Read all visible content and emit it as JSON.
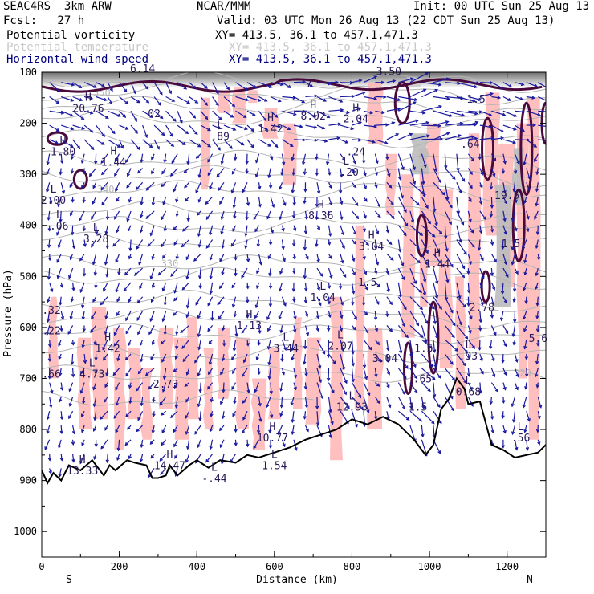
{
  "header": {
    "model": "SEAC4RS  3km ARW",
    "center": "NCAR/MMM",
    "init": "Init: 00 UTC Sun 25 Aug 13",
    "fcst": "Fcst:   27 h",
    "valid": "Valid: 03 UTC Mon 26 Aug 13 (22 CDT Sun 25 Aug 13)",
    "fields": [
      {
        "name": "Potential vorticity",
        "xy": "XY= 413.5, 36.1 to 457.1,471.3",
        "color": "#000000"
      },
      {
        "name": "Potential temperature",
        "xy": "XY= 413.5, 36.1 to 457.1,471.3",
        "color": "#c8c8c8"
      },
      {
        "name": "Horizontal wind speed",
        "xy": "XY= 413.5, 36.1 to 457.1,471.3",
        "color": "#000080"
      }
    ]
  },
  "chart_data": {
    "type": "cross-section",
    "xlabel": "Distance (km)",
    "ylabel": "Pressure (hPa)",
    "xlim": [
      0,
      1300
    ],
    "ylim": [
      1050,
      100
    ],
    "x_ticks": [
      0,
      200,
      400,
      600,
      800,
      1000,
      1200
    ],
    "y_ticks": [
      100,
      200,
      300,
      400,
      500,
      600,
      700,
      800,
      900,
      1000
    ],
    "endpoint_labels": {
      "left": "S",
      "right": "N"
    },
    "colors": {
      "terrain": "#000000",
      "pv_contour": "#4a0a3c",
      "theta_contour": "#b4b4b4",
      "wind_vectors": "#1a1aa0",
      "shading": "#ffb8b8",
      "stratosphere_shading": "#888888",
      "hl_labels": "#2a1a5a"
    },
    "theta_contours": [
      {
        "label": "350",
        "pressure": 140
      },
      {
        "label": "340",
        "pressure": 330
      },
      {
        "label": "330",
        "pressure": 475
      },
      {
        "label": "320",
        "pressure": 690
      }
    ],
    "terrain_profile": {
      "distance": [
        0,
        15,
        30,
        50,
        70,
        100,
        130,
        160,
        175,
        190,
        220,
        240,
        270,
        285,
        300,
        320,
        330,
        350,
        380,
        400,
        430,
        460,
        500,
        530,
        560,
        600,
        640,
        680,
        700,
        720,
        760,
        800,
        840,
        880,
        920,
        960,
        990,
        1010,
        1030,
        1050,
        1070,
        1090,
        1100,
        1130,
        1160,
        1190,
        1220,
        1250,
        1280,
        1300
      ],
      "pressure": [
        880,
        905,
        885,
        900,
        870,
        880,
        860,
        890,
        870,
        880,
        860,
        865,
        870,
        895,
        895,
        890,
        870,
        890,
        870,
        860,
        875,
        860,
        865,
        850,
        855,
        845,
        835,
        820,
        815,
        810,
        800,
        780,
        790,
        775,
        790,
        820,
        850,
        830,
        760,
        740,
        700,
        720,
        750,
        745,
        830,
        840,
        855,
        850,
        845,
        830
      ]
    },
    "hl_labels": [
      {
        "mark": "",
        "value": "6.14",
        "distance": 260,
        "pressure": 97
      },
      {
        "mark": "",
        "value": "3.50",
        "distance": 895,
        "pressure": 102
      },
      {
        "mark": "",
        "value": "7",
        "distance": 690,
        "pressure": 125
      },
      {
        "mark": "",
        "value": "1.5",
        "distance": 1120,
        "pressure": 157
      },
      {
        "mark": "H",
        "value": "20.76",
        "distance": 120,
        "pressure": 175
      },
      {
        "mark": "",
        "value": "02",
        "distance": 290,
        "pressure": 185
      },
      {
        "mark": "H",
        "value": "8.02",
        "distance": 700,
        "pressure": 190
      },
      {
        "mark": "H",
        "value": "2.04",
        "distance": 810,
        "pressure": 195
      },
      {
        "mark": "H",
        "value": "1.42",
        "distance": 590,
        "pressure": 215
      },
      {
        "mark": "L",
        "value": ".89",
        "distance": 460,
        "pressure": 230
      },
      {
        "mark": "",
        "value": ".64",
        "distance": 1105,
        "pressure": 245
      },
      {
        "mark": "H",
        "value": "1.80",
        "distance": 55,
        "pressure": 260
      },
      {
        "mark": "H",
        "value": "1.44",
        "distance": 185,
        "pressure": 280
      },
      {
        "mark": "",
        "value": ".24",
        "distance": 810,
        "pressure": 260
      },
      {
        "mark": "L",
        "value": "-.20",
        "distance": 785,
        "pressure": 300
      },
      {
        "mark": "L",
        "value": "2.00",
        "distance": 30,
        "pressure": 355
      },
      {
        "mark": "",
        "value": "19.5",
        "distance": 1200,
        "pressure": 345
      },
      {
        "mark": "L",
        "value": ".06",
        "distance": 45,
        "pressure": 405
      },
      {
        "mark": "H",
        "value": "8.36",
        "distance": 720,
        "pressure": 385
      },
      {
        "mark": "L",
        "value": "3.28",
        "distance": 140,
        "pressure": 430
      },
      {
        "mark": "H",
        "value": "3.04",
        "distance": 850,
        "pressure": 445
      },
      {
        "mark": "",
        "value": "1.5",
        "distance": 1210,
        "pressure": 440
      },
      {
        "mark": "H",
        "value": "1.44",
        "distance": 1020,
        "pressure": 480
      },
      {
        "mark": "",
        "value": "1.5",
        "distance": 840,
        "pressure": 515
      },
      {
        "mark": "L",
        "value": "1.04",
        "distance": 725,
        "pressure": 545
      },
      {
        "mark": "",
        "value": "2.78",
        "distance": 1135,
        "pressure": 565
      },
      {
        "mark": "",
        "value": ".32",
        "distance": 25,
        "pressure": 570
      },
      {
        "mark": "",
        "value": ".22",
        "distance": 25,
        "pressure": 610
      },
      {
        "mark": "H",
        "value": "1.13",
        "distance": 535,
        "pressure": 600
      },
      {
        "mark": "L",
        "value": "3.44",
        "distance": 630,
        "pressure": 645
      },
      {
        "mark": "L",
        "value": "2.07",
        "distance": 770,
        "pressure": 640
      },
      {
        "mark": "H",
        "value": "1.42",
        "distance": 170,
        "pressure": 645
      },
      {
        "mark": "L",
        "value": "4.73",
        "distance": 130,
        "pressure": 695
      },
      {
        "mark": "",
        "value": "3.04",
        "distance": 885,
        "pressure": 665
      },
      {
        "mark": "",
        "value": "1.5",
        "distance": 985,
        "pressure": 645
      },
      {
        "mark": "L",
        "value": ".93",
        "distance": 1100,
        "pressure": 660
      },
      {
        "mark": "",
        "value": "5.6",
        "distance": 1280,
        "pressure": 625
      },
      {
        "mark": "",
        "value": ".66",
        "distance": 25,
        "pressure": 695
      },
      {
        "mark": "",
        "value": "2.73",
        "distance": 320,
        "pressure": 715
      },
      {
        "mark": "",
        "value": ".65",
        "distance": 982,
        "pressure": 705
      },
      {
        "mark": "L",
        "value": "0.68",
        "distance": 1100,
        "pressure": 730
      },
      {
        "mark": "L",
        "value": "12.93",
        "distance": 800,
        "pressure": 760
      },
      {
        "mark": "",
        "value": "1.5",
        "distance": 970,
        "pressure": 760
      },
      {
        "mark": "H",
        "value": "10.77",
        "distance": 595,
        "pressure": 820
      },
      {
        "mark": "L",
        "value": ".56",
        "distance": 1235,
        "pressure": 820
      },
      {
        "mark": "L",
        "value": "1.54",
        "distance": 600,
        "pressure": 875
      },
      {
        "mark": "H",
        "value": "13.33",
        "distance": 105,
        "pressure": 885
      },
      {
        "mark": "H",
        "value": "14.47",
        "distance": 330,
        "pressure": 875
      },
      {
        "mark": "L",
        "value": "-.44",
        "distance": 445,
        "pressure": 900
      }
    ]
  }
}
